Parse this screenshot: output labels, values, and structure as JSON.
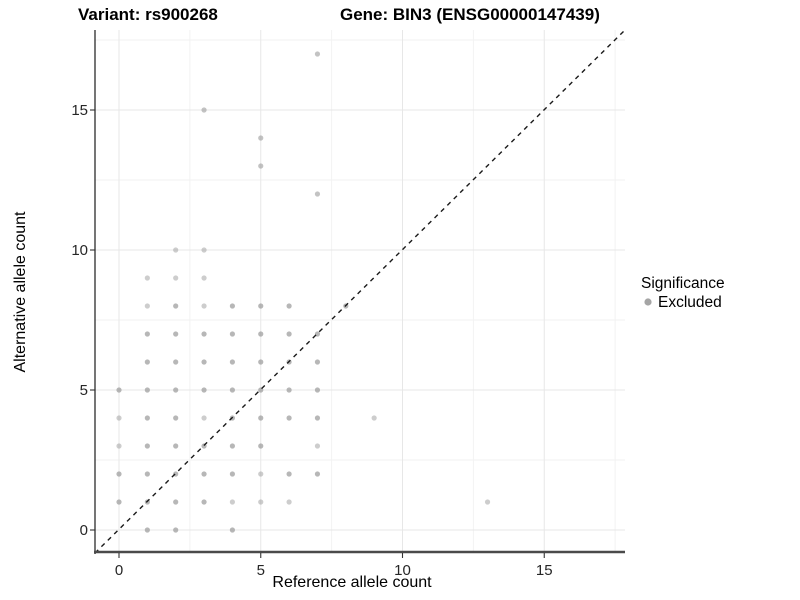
{
  "chart_data": {
    "type": "scatter",
    "title_left": "Variant: rs900268",
    "title_right": "Gene: BIN3 (ENSG00000147439)",
    "xlabel": "Reference allele count",
    "ylabel": "Alternative allele count",
    "xlim": [
      -0.85,
      17.85
    ],
    "ylim": [
      -0.8,
      17.9
    ],
    "x_ticks": {
      "major": [
        0,
        5,
        10,
        15
      ],
      "minor": [
        2.5,
        7.5,
        12.5,
        17.5
      ]
    },
    "y_ticks": {
      "major": [
        0,
        5,
        10,
        15
      ],
      "minor": [
        2.5,
        7.5,
        12.5,
        17.5
      ]
    },
    "grid": "major+minor",
    "identity_line": {
      "slope": 1,
      "intercept": 0,
      "style": "dashed",
      "color": "#1a1a1a"
    },
    "legend": {
      "title": "Significance",
      "position": "right",
      "entries": [
        {
          "label": "Excluded",
          "color": "#9b9b9b",
          "shape": "circle"
        }
      ]
    },
    "series": [
      {
        "name": "Excluded",
        "color": "#9b9b9b",
        "default_opacity": 0.72,
        "points": [
          [
            1,
            0
          ],
          [
            2,
            0
          ],
          [
            4,
            0
          ],
          [
            0,
            1
          ],
          [
            1,
            1
          ],
          [
            2,
            1
          ],
          [
            3,
            1
          ],
          [
            4,
            1,
            0.5
          ],
          [
            5,
            1,
            0.5
          ],
          [
            6,
            1,
            0.5
          ],
          [
            13,
            1,
            0.5
          ],
          [
            0,
            2
          ],
          [
            1,
            2
          ],
          [
            2,
            2
          ],
          [
            3,
            2
          ],
          [
            4,
            2
          ],
          [
            5,
            2,
            0.5
          ],
          [
            6,
            2
          ],
          [
            7,
            2
          ],
          [
            0,
            3,
            0.5
          ],
          [
            1,
            3
          ],
          [
            2,
            3
          ],
          [
            3,
            3
          ],
          [
            4,
            3
          ],
          [
            5,
            3
          ],
          [
            7,
            3,
            0.5
          ],
          [
            0,
            4,
            0.5
          ],
          [
            1,
            4
          ],
          [
            2,
            4
          ],
          [
            3,
            4,
            0.5
          ],
          [
            4,
            4
          ],
          [
            5,
            4
          ],
          [
            6,
            4
          ],
          [
            7,
            4
          ],
          [
            9,
            4,
            0.5
          ],
          [
            0,
            5
          ],
          [
            1,
            5
          ],
          [
            2,
            5
          ],
          [
            3,
            5
          ],
          [
            4,
            5
          ],
          [
            5,
            5
          ],
          [
            6,
            5
          ],
          [
            7,
            5
          ],
          [
            1,
            6
          ],
          [
            2,
            6
          ],
          [
            3,
            6
          ],
          [
            4,
            6
          ],
          [
            5,
            6
          ],
          [
            6,
            6
          ],
          [
            7,
            6
          ],
          [
            1,
            7
          ],
          [
            2,
            7
          ],
          [
            3,
            7
          ],
          [
            4,
            7
          ],
          [
            5,
            7
          ],
          [
            6,
            7
          ],
          [
            7,
            7
          ],
          [
            1,
            8,
            0.5
          ],
          [
            2,
            8
          ],
          [
            3,
            8,
            0.5
          ],
          [
            4,
            8
          ],
          [
            5,
            8
          ],
          [
            6,
            8
          ],
          [
            8,
            8
          ],
          [
            1,
            9,
            0.5
          ],
          [
            2,
            9,
            0.5
          ],
          [
            3,
            9,
            0.5
          ],
          [
            2,
            10,
            0.5
          ],
          [
            3,
            10,
            0.5
          ],
          [
            7,
            12,
            0.6
          ],
          [
            5,
            13,
            0.6
          ],
          [
            5,
            14,
            0.6
          ],
          [
            3,
            15,
            0.6
          ],
          [
            7,
            17,
            0.6
          ]
        ]
      }
    ]
  },
  "colors": {
    "background": "#ffffff",
    "grid_major": "#e7e7e7",
    "grid_minor": "#f2f2f2",
    "axis_line_left": "#1a1a1a",
    "axis_line_bottom": "#4a4a4a",
    "tick_mark": "#333333",
    "tick_text": "#262626",
    "point": "#9b9b9b"
  }
}
